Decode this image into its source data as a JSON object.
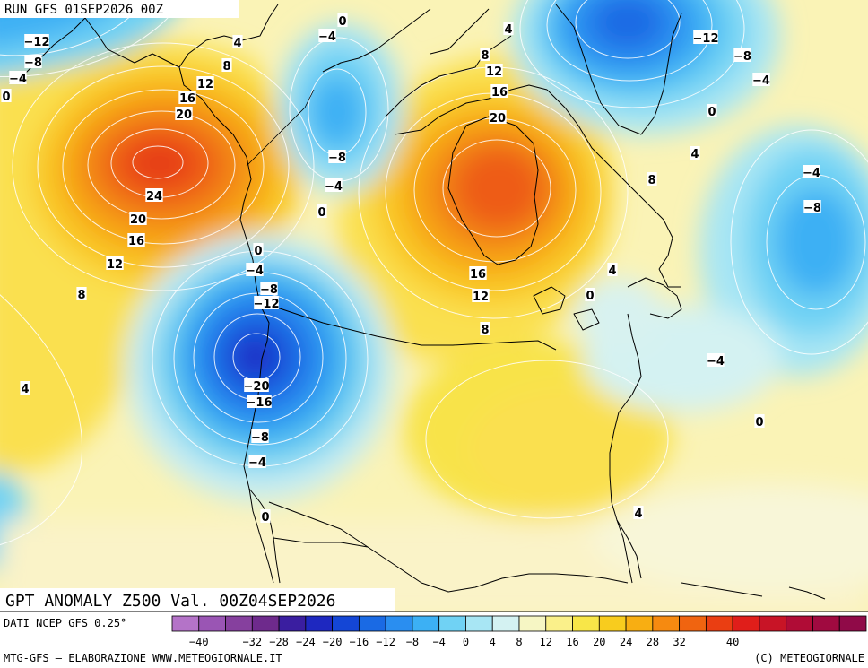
{
  "run_label": "RUN GFS 01SEP2026 00Z",
  "field_title": "GPT ANOMALY Z500 Val. 00Z04SEP2026",
  "data_source": "DATI NCEP GFS 0.25°",
  "credit_left": "MTG-GFS — ELABORAZIONE WWW.METEOGIORNALE.IT",
  "credit_right": "(C) METEOGIORNALE",
  "colorbar": {
    "ticks": [
      "−40",
      "−36",
      "−32",
      "−28",
      "−24",
      "−20",
      "−16",
      "−12",
      "−8",
      "−4",
      "0",
      "4",
      "8",
      "12",
      "16",
      "20",
      "24",
      "28",
      "32",
      "36",
      "40"
    ],
    "tick_labels": [
      "−40",
      "−32",
      "−28",
      "−24",
      "−20",
      "−16",
      "−12",
      "−8",
      "−4",
      "0",
      "4",
      "8",
      "12",
      "16",
      "20",
      "24",
      "28",
      "32",
      "40"
    ],
    "colors": [
      "#b473c8",
      "#9a55b4",
      "#86409e",
      "#6e2a8c",
      "#3a1ea0",
      "#1e28c0",
      "#1446d6",
      "#1a6ae4",
      "#2a8ef0",
      "#3cb0f4",
      "#70d2f4",
      "#a8e6f4",
      "#d4f2f2",
      "#f6f6c4",
      "#faf08a",
      "#f8e648",
      "#f8cc1e",
      "#f8ae12",
      "#f68a10",
      "#f06410",
      "#ea3e12",
      "#e01e1a",
      "#c81426",
      "#b00c36",
      "#a00a40",
      "#900a48"
    ]
  },
  "contour_labels": [
    {
      "t": "−12"
    },
    {
      "t": "−8"
    },
    {
      "t": "−4"
    },
    {
      "t": "0"
    },
    {
      "t": "4"
    },
    {
      "t": "8"
    },
    {
      "t": "12"
    },
    {
      "t": "16"
    },
    {
      "t": "20"
    },
    {
      "t": "24"
    },
    {
      "t": "20"
    },
    {
      "t": "16"
    },
    {
      "t": "12"
    },
    {
      "t": "8"
    },
    {
      "t": "4"
    },
    {
      "t": "0"
    },
    {
      "t": "−4"
    },
    {
      "t": "−8"
    },
    {
      "t": "−4"
    },
    {
      "t": "0"
    },
    {
      "t": "4"
    },
    {
      "t": "8"
    },
    {
      "t": "12"
    },
    {
      "t": "16"
    },
    {
      "t": "20"
    },
    {
      "t": "16"
    },
    {
      "t": "12"
    },
    {
      "t": "8"
    },
    {
      "t": "−12"
    },
    {
      "t": "−8"
    },
    {
      "t": "−4"
    },
    {
      "t": "0"
    },
    {
      "t": "4"
    },
    {
      "t": "8"
    },
    {
      "t": "−4"
    },
    {
      "t": "−8"
    },
    {
      "t": "4"
    },
    {
      "t": "0"
    },
    {
      "t": "−4"
    },
    {
      "t": "0"
    },
    {
      "t": "4"
    },
    {
      "t": "0"
    },
    {
      "t": "−4"
    },
    {
      "t": "−8"
    },
    {
      "t": "−12"
    },
    {
      "t": "−20"
    },
    {
      "t": "−16"
    },
    {
      "t": "−8"
    },
    {
      "t": "−4"
    },
    {
      "t": "0"
    }
  ]
}
